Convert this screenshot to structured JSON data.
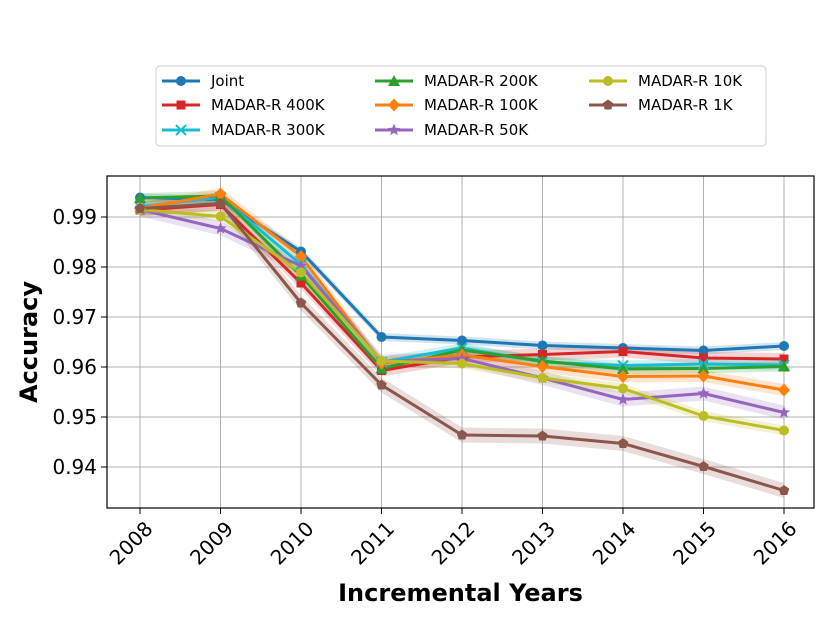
{
  "chart_data": {
    "type": "line",
    "title": "",
    "xlabel": "Incremental Years",
    "ylabel": "Accuracy",
    "categories": [
      "2008",
      "2009",
      "2010",
      "2011",
      "2012",
      "2013",
      "2014",
      "2015",
      "2016"
    ],
    "yticks": [
      "0.94",
      "0.95",
      "0.96",
      "0.97",
      "0.98",
      "0.99"
    ],
    "ylim": [
      0.9318,
      0.9982
    ],
    "grid": true,
    "legend_position": "top-center",
    "series": [
      {
        "name": "Joint",
        "color": "#1f77b4",
        "marker": "circle",
        "values": [
          0.9939,
          0.9935,
          0.9831,
          0.966,
          0.9653,
          0.9643,
          0.9638,
          0.9633,
          0.9642
        ],
        "band": 0.0008
      },
      {
        "name": "MADAR-R 400K",
        "color": "#d62728",
        "marker": "square",
        "values": [
          0.9914,
          0.9925,
          0.9768,
          0.9593,
          0.962,
          0.9625,
          0.9631,
          0.9618,
          0.9616
        ],
        "band": 0.0012
      },
      {
        "name": "MADAR-R 300K",
        "color": "#17becf",
        "marker": "x",
        "values": [
          0.992,
          0.994,
          0.9805,
          0.961,
          0.9638,
          0.961,
          0.9603,
          0.9606,
          0.9604
        ],
        "band": 0.001
      },
      {
        "name": "MADAR-R 200K",
        "color": "#2ca02c",
        "marker": "triangle",
        "values": [
          0.9938,
          0.9942,
          0.9783,
          0.9597,
          0.9634,
          0.9612,
          0.9596,
          0.9597,
          0.9601
        ],
        "band": 0.001
      },
      {
        "name": "MADAR-R 100K",
        "color": "#ff7f0e",
        "marker": "diamond",
        "values": [
          0.9917,
          0.9946,
          0.9821,
          0.9608,
          0.9624,
          0.9601,
          0.9581,
          0.9582,
          0.9554
        ],
        "band": 0.0012
      },
      {
        "name": "MADAR-R 50K",
        "color": "#9467bd",
        "marker": "star",
        "values": [
          0.9915,
          0.9877,
          0.9802,
          0.9611,
          0.9617,
          0.9578,
          0.9535,
          0.9547,
          0.9509
        ],
        "band": 0.0014
      },
      {
        "name": "MADAR-R 10K",
        "color": "#bcbd22",
        "marker": "circle",
        "values": [
          0.9915,
          0.9901,
          0.9789,
          0.9612,
          0.9607,
          0.9578,
          0.9557,
          0.9502,
          0.9473
        ],
        "band": 0.001
      },
      {
        "name": "MADAR-R 1K",
        "color": "#8c564b",
        "marker": "pentagon",
        "values": [
          0.9917,
          0.9927,
          0.9728,
          0.9564,
          0.9464,
          0.9462,
          0.9447,
          0.9401,
          0.9353
        ],
        "band": 0.0015
      }
    ]
  }
}
